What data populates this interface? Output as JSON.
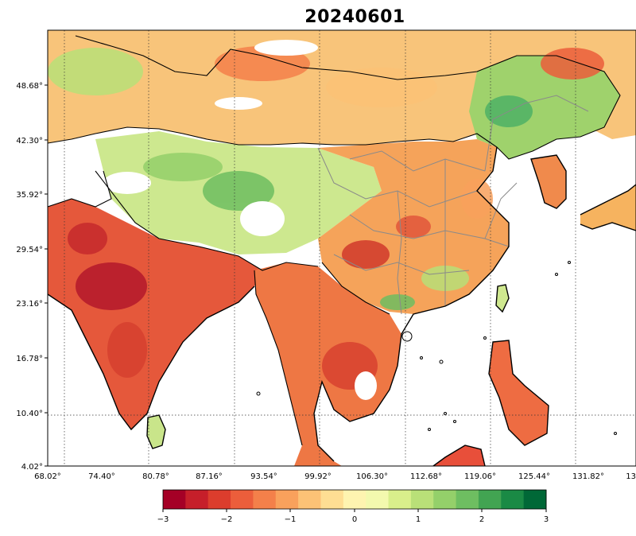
{
  "title": "20240601",
  "map": {
    "lat_ticks": [
      "48.68°",
      "42.30°",
      "35.92°",
      "29.54°",
      "23.16°",
      "16.78°",
      "10.40°",
      "4.02°"
    ],
    "lon_ticks": [
      "68.02°",
      "74.40°",
      "80.78°",
      "87.16°",
      "93.54°",
      "99.92°",
      "106.30°",
      "112.68°",
      "119.06°",
      "125.44°",
      "131.82°",
      "13"
    ],
    "lon_range": [
      68.02,
      138.2
    ],
    "lat_range": [
      4.02,
      54.6
    ],
    "gridlines": true,
    "colors": {
      "dry_strong": "#a50026",
      "dry": "#e8553a",
      "dry_light": "#fdae61",
      "neutral": "#fff7bc",
      "wet_light": "#b7e075",
      "wet": "#4eb265",
      "wet_strong": "#006837",
      "border": "#000000",
      "province_border": "#8a8a8a"
    }
  },
  "colorbar": {
    "ticks": [
      "−3",
      "−2",
      "−1",
      "0",
      "1",
      "2",
      "3"
    ],
    "min": -3,
    "max": 3,
    "palette": [
      "#a50026",
      "#c61f2a",
      "#dc3d2d",
      "#ec5e3b",
      "#f4804a",
      "#f9a15c",
      "#fcc276",
      "#fede93",
      "#fef4b0",
      "#f3f9ae",
      "#d9ef8b",
      "#b9e078",
      "#94d06a",
      "#6ebe61",
      "#42a452",
      "#1a8a45",
      "#006837"
    ]
  }
}
